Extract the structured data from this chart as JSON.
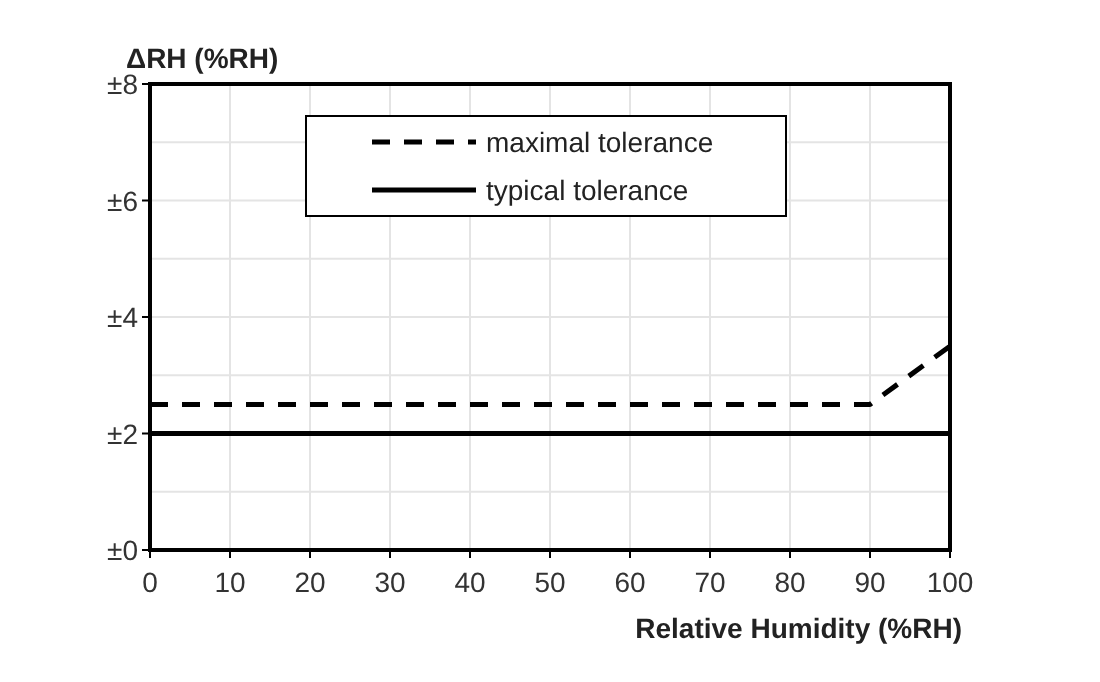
{
  "chart_data": {
    "type": "line",
    "xlabel": "Relative Humidity (%RH)",
    "ylabel": "ΔRH (%RH)",
    "xlim": [
      0,
      100
    ],
    "xticks": [
      0,
      10,
      20,
      30,
      40,
      50,
      60,
      70,
      80,
      90,
      100
    ],
    "ylim": [
      0,
      8
    ],
    "yticks": [
      {
        "value": 0,
        "label": "±0"
      },
      {
        "value": 1,
        "label": null
      },
      {
        "value": 2,
        "label": "±2"
      },
      {
        "value": 3,
        "label": null
      },
      {
        "value": 4,
        "label": "±4"
      },
      {
        "value": 5,
        "label": null
      },
      {
        "value": 6,
        "label": "±6"
      },
      {
        "value": 7,
        "label": null
      },
      {
        "value": 8,
        "label": "±8"
      }
    ],
    "grid": true,
    "legend": "top",
    "series": [
      {
        "name": "maximal tolerance",
        "color": "#000000",
        "line_style": "dashed",
        "x": [
          0,
          90,
          100
        ],
        "values": [
          2.5,
          2.5,
          3.5
        ]
      },
      {
        "name": "typical tolerance",
        "color": "#000000",
        "line_style": "solid",
        "x": [
          0,
          100
        ],
        "values": [
          2,
          2
        ]
      }
    ]
  }
}
